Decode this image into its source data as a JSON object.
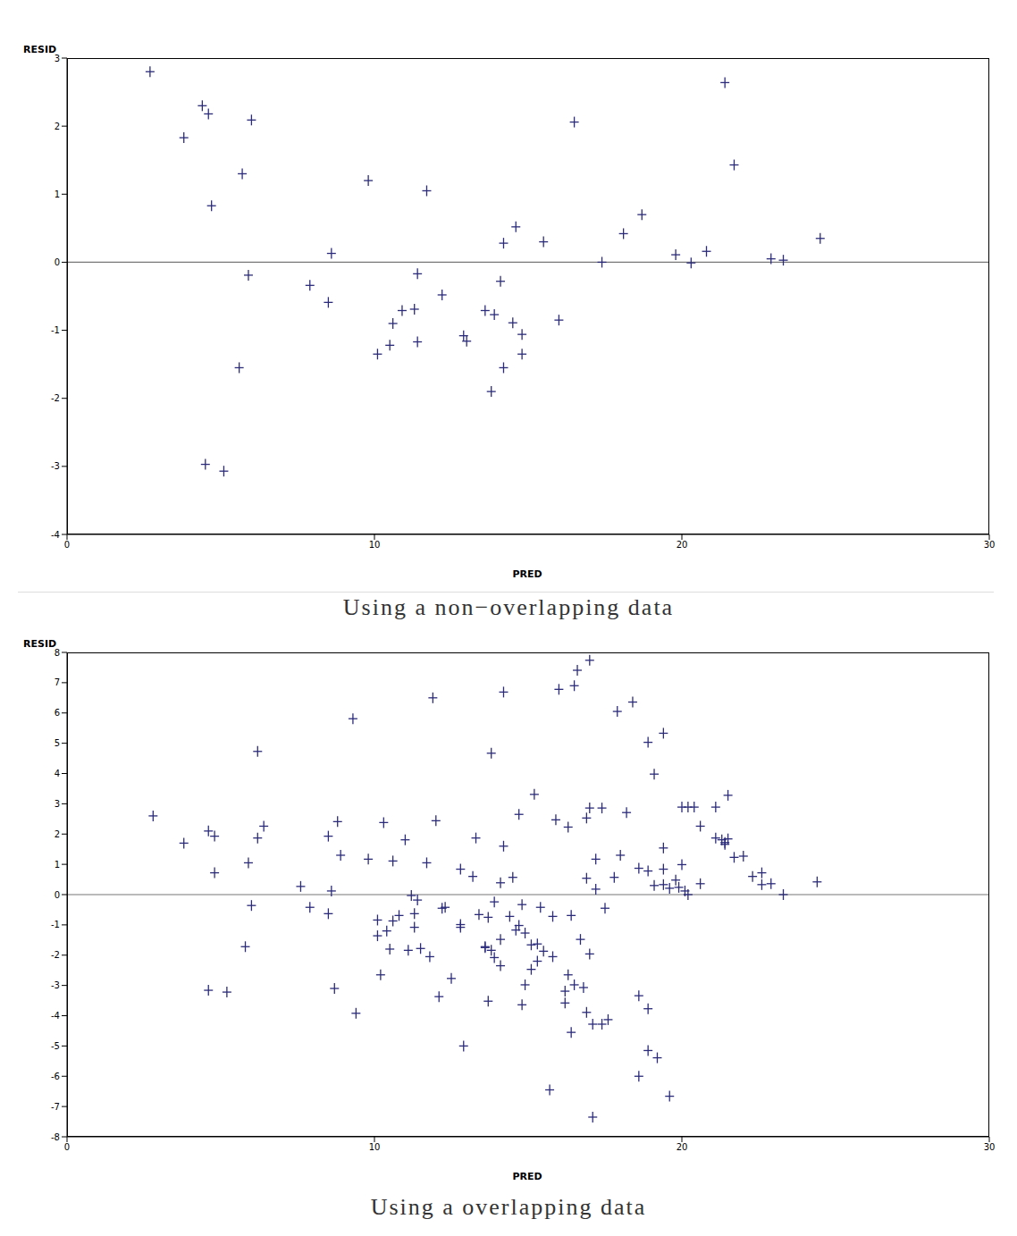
{
  "chart_data": [
    {
      "type": "scatter",
      "title": "Using a non−overlapping data",
      "x_label": "PRED",
      "y_label": "RESID",
      "xlim": [
        0,
        30
      ],
      "xticks": [
        0,
        10,
        20,
        30
      ],
      "ylim": [
        -4,
        3
      ],
      "yticks": [
        -4,
        -3,
        -2,
        -1,
        0,
        1,
        2,
        3
      ],
      "grid": false,
      "color": "#2b2b7a",
      "marker": "plus",
      "reference_line": 0,
      "x": [
        2.7,
        3.8,
        4.4,
        4.6,
        4.7,
        4.5,
        5.1,
        5.7,
        6.0,
        5.9,
        5.6,
        7.9,
        8.6,
        8.5,
        9.8,
        10.1,
        10.5,
        10.6,
        10.9,
        11.3,
        11.4,
        11.4,
        11.7,
        12.2,
        12.9,
        13.0,
        13.6,
        13.9,
        13.8,
        14.1,
        14.2,
        14.2,
        14.5,
        14.6,
        14.8,
        14.8,
        15.5,
        16.0,
        16.5,
        17.4,
        18.1,
        18.7,
        19.8,
        20.3,
        20.8,
        21.4,
        21.7,
        22.9,
        23.3,
        24.5
      ],
      "values": [
        2.8,
        1.83,
        2.3,
        2.18,
        0.83,
        -2.97,
        -3.07,
        1.3,
        2.09,
        -0.19,
        -1.55,
        -0.34,
        0.13,
        -0.59,
        1.2,
        -1.35,
        -1.22,
        -0.9,
        -0.71,
        -0.69,
        -0.17,
        -1.17,
        1.05,
        -0.48,
        -1.08,
        -1.16,
        -0.71,
        -0.77,
        -1.9,
        -0.28,
        0.28,
        -1.55,
        -0.89,
        0.52,
        -1.06,
        -1.35,
        0.3,
        -0.85,
        2.06,
        0.0,
        0.42,
        0.7,
        0.11,
        -0.01,
        0.16,
        2.64,
        1.43,
        0.05,
        0.03,
        0.35
      ]
    },
    {
      "type": "scatter",
      "title": "Using a overlapping data",
      "x_label": "PRED",
      "y_label": "RESID",
      "xlim": [
        0,
        30
      ],
      "xticks": [
        0,
        10,
        20,
        30
      ],
      "ylim": [
        -8,
        8
      ],
      "yticks": [
        -8,
        -7,
        -6,
        -5,
        -4,
        -3,
        -2,
        -1,
        0,
        1,
        2,
        3,
        4,
        5,
        6,
        7,
        8
      ],
      "grid": false,
      "color": "#2b2b7a",
      "marker": "plus",
      "reference_line": 0,
      "x": [
        2.8,
        3.8,
        4.6,
        4.8,
        4.8,
        4.6,
        5.2,
        5.9,
        6.2,
        6.2,
        6.4,
        5.8,
        6.0,
        7.6,
        7.9,
        8.5,
        8.5,
        8.6,
        8.8,
        8.9,
        8.7,
        9.3,
        9.4,
        9.8,
        10.1,
        10.1,
        10.2,
        10.3,
        10.4,
        10.5,
        10.6,
        10.6,
        10.8,
        11.0,
        11.1,
        11.2,
        11.3,
        11.3,
        11.4,
        11.5,
        11.7,
        11.8,
        11.9,
        12.0,
        12.1,
        12.2,
        12.3,
        12.5,
        12.8,
        12.8,
        12.8,
        12.9,
        13.2,
        13.3,
        13.4,
        13.6,
        13.6,
        13.7,
        13.7,
        13.8,
        13.8,
        13.9,
        13.9,
        14.1,
        14.1,
        14.1,
        14.2,
        14.2,
        14.4,
        14.5,
        14.6,
        14.7,
        14.7,
        14.8,
        14.8,
        14.9,
        14.9,
        15.1,
        15.1,
        15.2,
        15.3,
        15.3,
        15.4,
        15.5,
        15.7,
        15.8,
        15.8,
        15.9,
        16.0,
        16.2,
        16.2,
        16.3,
        16.3,
        16.4,
        16.4,
        16.5,
        16.5,
        16.6,
        16.7,
        16.8,
        16.9,
        16.9,
        16.9,
        17.0,
        17.0,
        17.0,
        17.1,
        17.1,
        17.2,
        17.2,
        17.4,
        17.4,
        17.5,
        17.6,
        17.8,
        17.9,
        18.0,
        18.2,
        18.4,
        18.6,
        18.6,
        18.6,
        18.9,
        18.9,
        18.9,
        18.9,
        19.1,
        19.1,
        19.2,
        19.4,
        19.4,
        19.4,
        19.4,
        19.6,
        19.6,
        19.8,
        19.9,
        20.0,
        20.0,
        20.1,
        20.2,
        20.2,
        20.4,
        20.6,
        20.6,
        21.1,
        21.1,
        21.3,
        21.4,
        21.4,
        21.5,
        21.5,
        21.7,
        22.0,
        22.3,
        22.6,
        22.6,
        22.9,
        23.3,
        24.4
      ],
      "values": [
        2.6,
        1.7,
        2.1,
        1.93,
        0.72,
        -3.16,
        -3.22,
        1.05,
        4.73,
        1.87,
        2.26,
        -1.72,
        -0.36,
        0.27,
        -0.42,
        -0.63,
        1.93,
        0.12,
        2.41,
        1.3,
        -3.1,
        5.81,
        -3.92,
        1.17,
        -1.36,
        -0.84,
        -2.65,
        2.38,
        -1.2,
        -1.8,
        -0.87,
        1.11,
        -0.69,
        1.81,
        -1.84,
        -0.03,
        -0.63,
        -1.08,
        -0.18,
        -1.78,
        1.05,
        -2.05,
        6.5,
        2.44,
        -3.37,
        -0.45,
        -0.42,
        -2.77,
        0.84,
        -0.99,
        -1.08,
        -5.0,
        0.6,
        1.87,
        -0.66,
        -1.72,
        -1.75,
        -3.52,
        -0.75,
        -1.84,
        4.67,
        -0.24,
        -2.08,
        -2.35,
        -1.48,
        0.39,
        1.6,
        6.69,
        -0.72,
        0.57,
        -1.17,
        -1.02,
        2.65,
        -0.33,
        -3.64,
        -2.98,
        -1.27,
        -1.66,
        -2.47,
        3.31,
        -2.2,
        -1.63,
        -0.42,
        -1.87,
        -6.45,
        -2.05,
        -0.72,
        2.47,
        6.78,
        -3.19,
        -3.58,
        2.23,
        -2.65,
        -0.69,
        -4.55,
        -2.98,
        6.9,
        7.41,
        -1.48,
        -3.07,
        2.53,
        0.54,
        -3.89,
        2.86,
        7.74,
        -1.96,
        -7.35,
        -4.28,
        1.17,
        0.18,
        2.86,
        -4.28,
        -0.45,
        -4.13,
        0.57,
        6.05,
        1.3,
        2.71,
        6.36,
        0.87,
        -3.34,
        -6.0,
        5.03,
        0.78,
        -3.77,
        -5.15,
        3.98,
        0.3,
        -5.39,
        1.54,
        5.33,
        0.84,
        0.33,
        0.21,
        -6.66,
        0.48,
        0.24,
        0.99,
        2.89,
        0.12,
        2.89,
        0.0,
        2.89,
        2.26,
        0.36,
        2.89,
        1.87,
        1.81,
        1.72,
        1.66,
        1.84,
        3.28,
        1.23,
        1.27,
        0.6,
        0.72,
        0.33,
        0.36,
        0.0,
        0.42
      ]
    }
  ]
}
